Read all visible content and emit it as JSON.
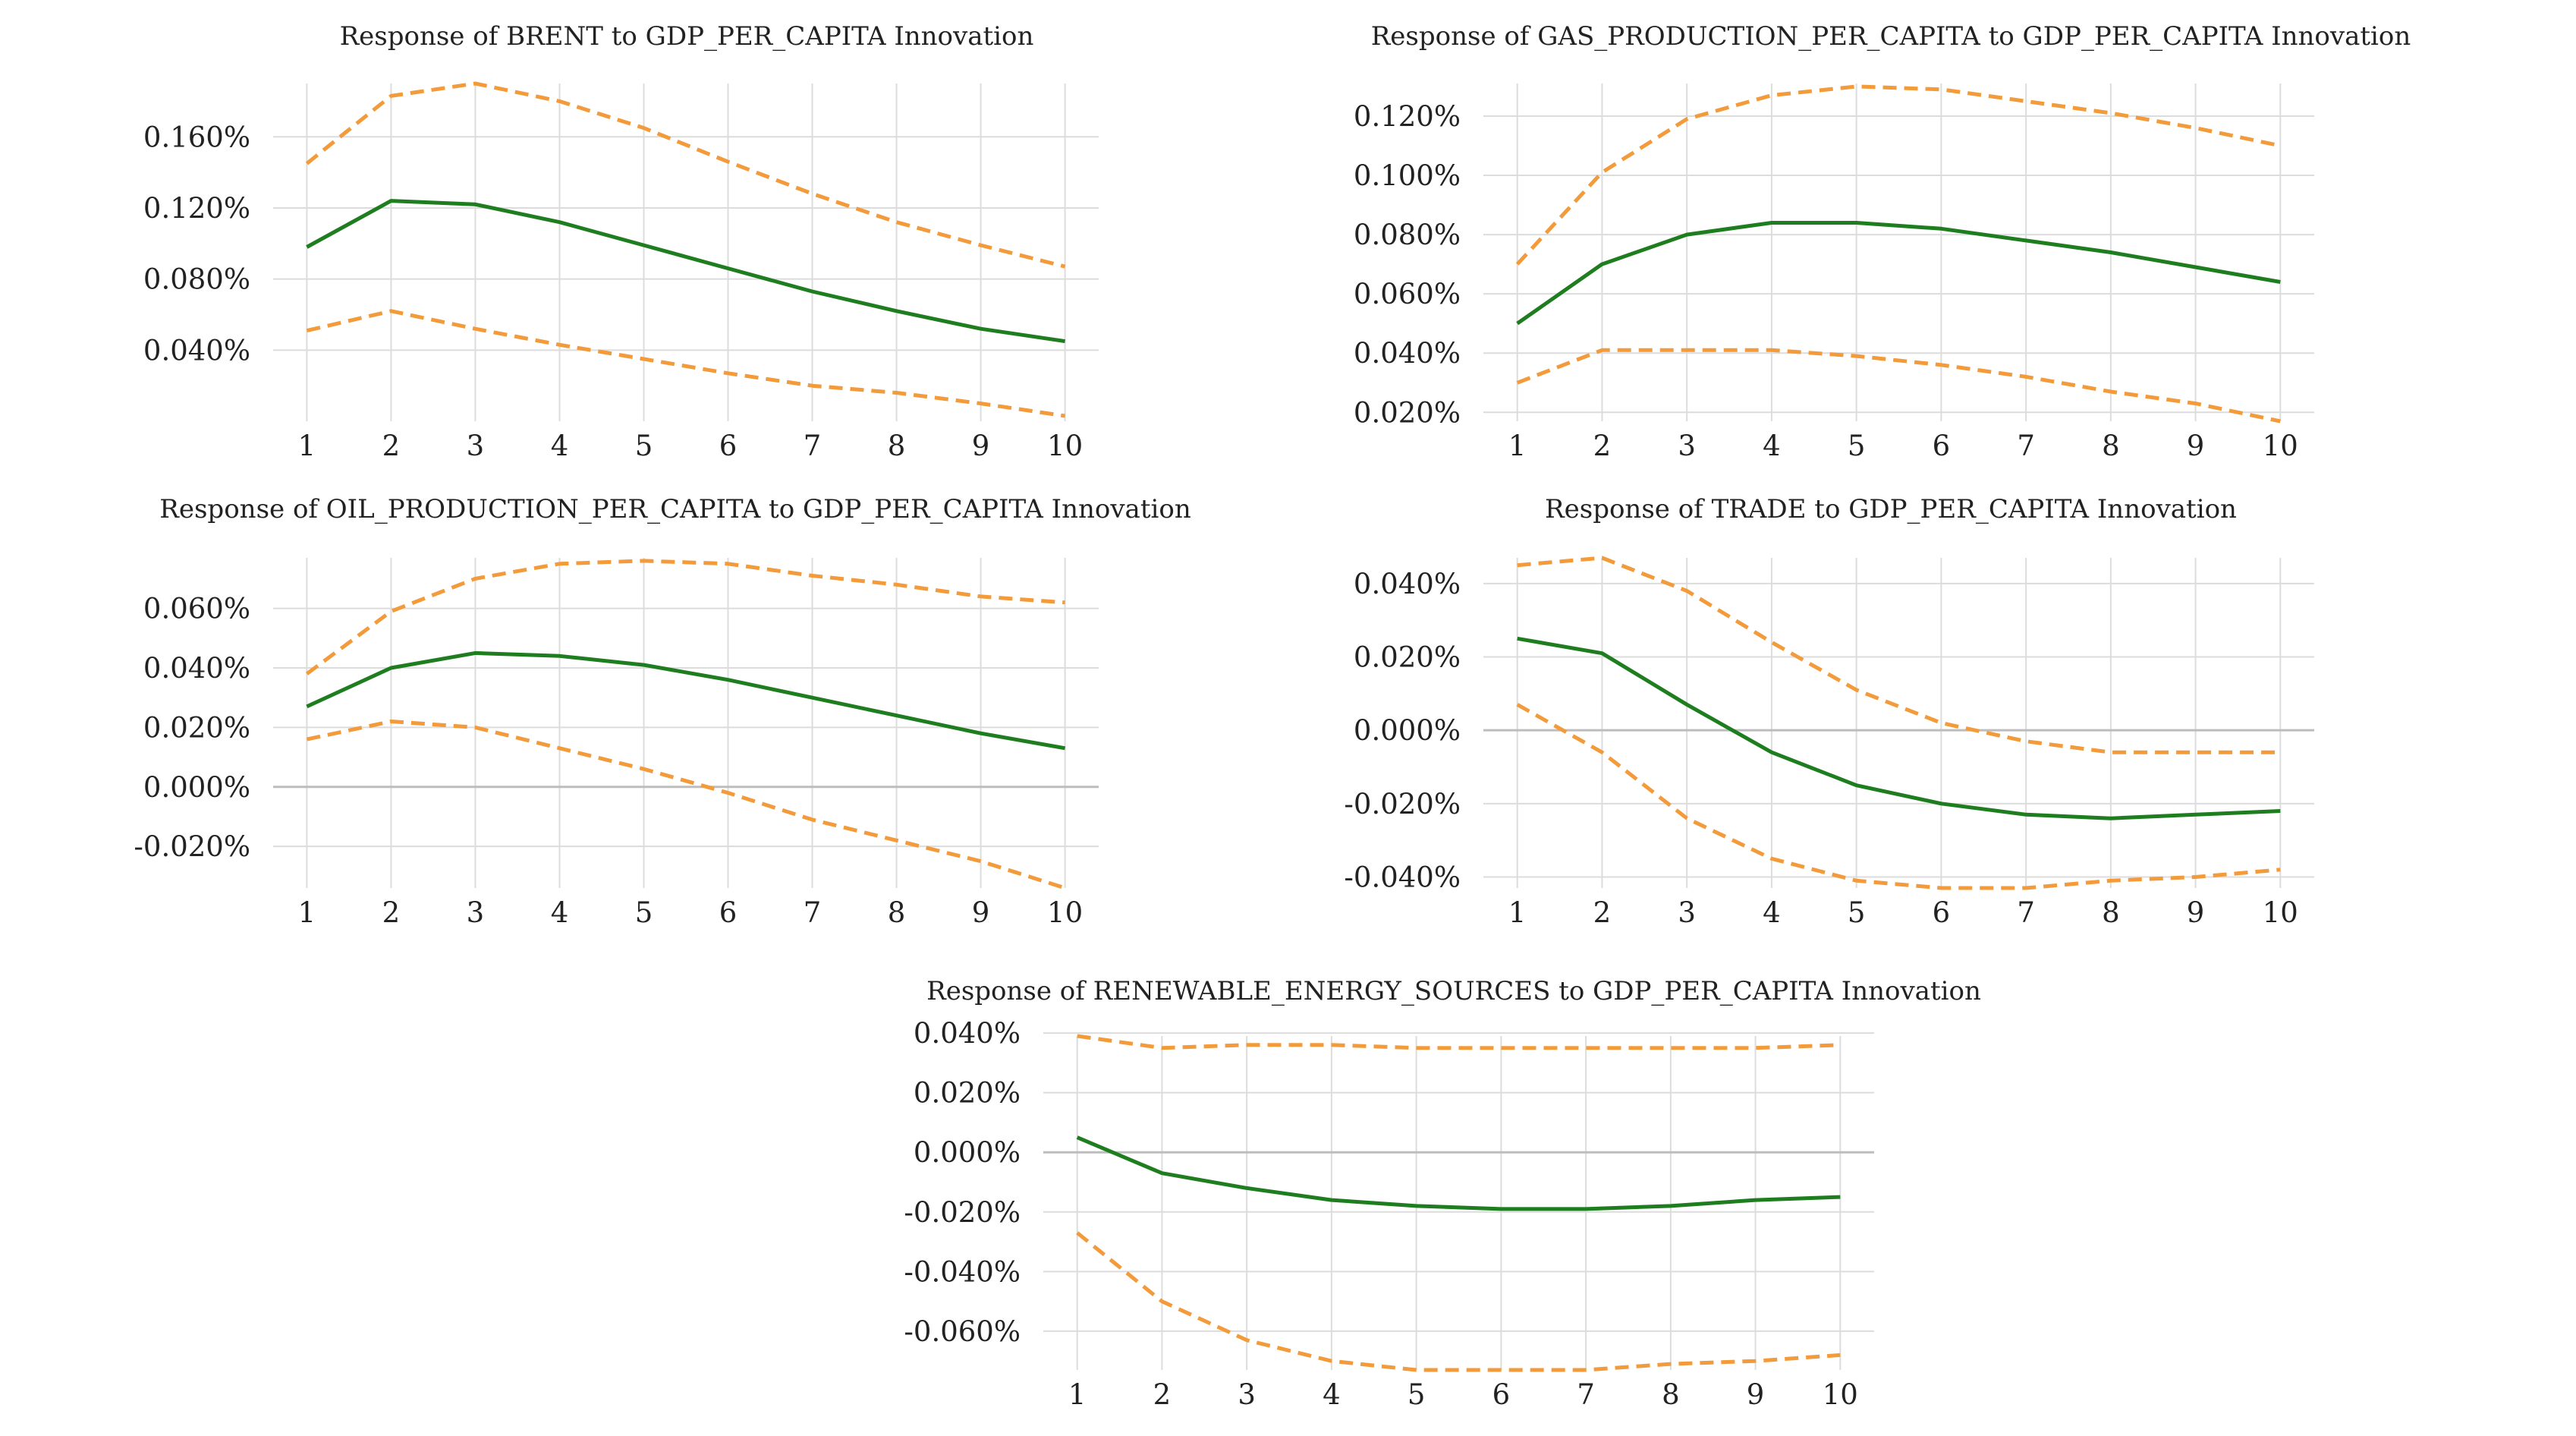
{
  "colors": {
    "response": "#1e7d1e",
    "bands": "#f39a3a",
    "grid": "#dcdcdc",
    "zero": "#bdbdbd"
  },
  "chart_data": [
    {
      "type": "line",
      "title": "Response of BRENT to GDP_PER_CAPITA Innovation",
      "x": [
        1,
        2,
        3,
        4,
        5,
        6,
        7,
        8,
        9,
        10
      ],
      "ylim": [
        0.0,
        0.19
      ],
      "yticks": [
        0.04,
        0.08,
        0.12,
        0.16
      ],
      "ytick_labels": [
        "0.040%",
        "0.080%",
        "0.120%",
        "0.160%"
      ],
      "series": [
        {
          "role": "response",
          "style": "solid",
          "values": [
            0.098,
            0.124,
            0.122,
            0.112,
            0.099,
            0.086,
            0.073,
            0.062,
            0.052,
            0.045
          ]
        },
        {
          "role": "upper",
          "style": "dashed",
          "values": [
            0.145,
            0.183,
            0.19,
            0.18,
            0.165,
            0.146,
            0.128,
            0.112,
            0.099,
            0.087
          ]
        },
        {
          "role": "lower",
          "style": "dashed",
          "values": [
            0.051,
            0.062,
            0.052,
            0.043,
            0.035,
            0.027,
            0.02,
            0.016,
            0.01,
            0.003
          ]
        }
      ]
    },
    {
      "type": "line",
      "title": "Response of GAS_PRODUCTION_PER_CAPITA to GDP_PER_CAPITA Innovation",
      "x": [
        1,
        2,
        3,
        4,
        5,
        6,
        7,
        8,
        9,
        10
      ],
      "ylim": [
        0.017,
        0.131
      ],
      "yticks": [
        0.02,
        0.04,
        0.06,
        0.08,
        0.1,
        0.12
      ],
      "ytick_labels": [
        "0.020%",
        "0.040%",
        "0.060%",
        "0.080%",
        "0.100%",
        "0.120%"
      ],
      "series": [
        {
          "role": "response",
          "style": "solid",
          "values": [
            0.05,
            0.07,
            0.08,
            0.084,
            0.084,
            0.082,
            0.078,
            0.074,
            0.069,
            0.064
          ]
        },
        {
          "role": "upper",
          "style": "dashed",
          "values": [
            0.07,
            0.101,
            0.119,
            0.127,
            0.13,
            0.129,
            0.125,
            0.121,
            0.116,
            0.11
          ]
        },
        {
          "role": "lower",
          "style": "dashed",
          "values": [
            0.03,
            0.041,
            0.041,
            0.041,
            0.039,
            0.036,
            0.032,
            0.027,
            0.023,
            0.017
          ]
        }
      ]
    },
    {
      "type": "line",
      "title": "Response of OIL_PRODUCTION_PER_CAPITA to GDP_PER_CAPITA Innovation",
      "x": [
        1,
        2,
        3,
        4,
        5,
        6,
        7,
        8,
        9,
        10
      ],
      "ylim": [
        -0.034,
        0.077
      ],
      "yticks": [
        -0.02,
        0.0,
        0.02,
        0.04,
        0.06
      ],
      "ytick_labels": [
        "-0.020%",
        "0.000%",
        "0.020%",
        "0.040%",
        "0.060%"
      ],
      "series": [
        {
          "role": "response",
          "style": "solid",
          "values": [
            0.027,
            0.04,
            0.045,
            0.044,
            0.041,
            0.036,
            0.03,
            0.024,
            0.018,
            0.013
          ]
        },
        {
          "role": "upper",
          "style": "dashed",
          "values": [
            0.038,
            0.059,
            0.07,
            0.075,
            0.076,
            0.075,
            0.071,
            0.068,
            0.064,
            0.062
          ]
        },
        {
          "role": "lower",
          "style": "dashed",
          "values": [
            0.016,
            0.022,
            0.02,
            0.013,
            0.006,
            -0.002,
            -0.011,
            -0.018,
            -0.025,
            -0.034
          ]
        }
      ]
    },
    {
      "type": "line",
      "title": "Response of TRADE to GDP_PER_CAPITA Innovation",
      "x": [
        1,
        2,
        3,
        4,
        5,
        6,
        7,
        8,
        9,
        10
      ],
      "ylim": [
        -0.043,
        0.047
      ],
      "yticks": [
        -0.04,
        -0.02,
        0.0,
        0.02,
        0.04
      ],
      "ytick_labels": [
        "-0.040%",
        "-0.020%",
        "0.000%",
        "0.020%",
        "0.040%"
      ],
      "series": [
        {
          "role": "response",
          "style": "solid",
          "values": [
            0.025,
            0.021,
            0.007,
            -0.006,
            -0.015,
            -0.02,
            -0.023,
            -0.024,
            -0.023,
            -0.022
          ]
        },
        {
          "role": "upper",
          "style": "dashed",
          "values": [
            0.045,
            0.047,
            0.038,
            0.024,
            0.011,
            0.002,
            -0.003,
            -0.006,
            -0.006,
            -0.006
          ]
        },
        {
          "role": "lower",
          "style": "dashed",
          "values": [
            0.007,
            -0.006,
            -0.024,
            -0.035,
            -0.041,
            -0.043,
            -0.043,
            -0.041,
            -0.04,
            -0.038
          ]
        }
      ]
    },
    {
      "type": "line",
      "title": "Response of RENEWABLE_ENERGY_SOURCES to GDP_PER_CAPITA Innovation",
      "x": [
        1,
        2,
        3,
        4,
        5,
        6,
        7,
        8,
        9,
        10
      ],
      "ylim": [
        -0.073,
        0.039
      ],
      "yticks": [
        -0.06,
        -0.04,
        -0.02,
        0.0,
        0.02,
        0.04
      ],
      "ytick_labels": [
        "-0.060%",
        "-0.040%",
        "-0.020%",
        "0.000%",
        "0.020%",
        "0.040%"
      ],
      "series": [
        {
          "role": "response",
          "style": "solid",
          "values": [
            0.005,
            -0.007,
            -0.012,
            -0.016,
            -0.018,
            -0.019,
            -0.019,
            -0.018,
            -0.016,
            -0.015
          ]
        },
        {
          "role": "upper",
          "style": "dashed",
          "values": [
            0.039,
            0.035,
            0.036,
            0.036,
            0.035,
            0.035,
            0.035,
            0.035,
            0.035,
            0.036
          ]
        },
        {
          "role": "lower",
          "style": "dashed",
          "values": [
            -0.027,
            -0.05,
            -0.063,
            -0.07,
            -0.073,
            -0.073,
            -0.073,
            -0.071,
            -0.07,
            -0.068
          ]
        }
      ]
    }
  ]
}
